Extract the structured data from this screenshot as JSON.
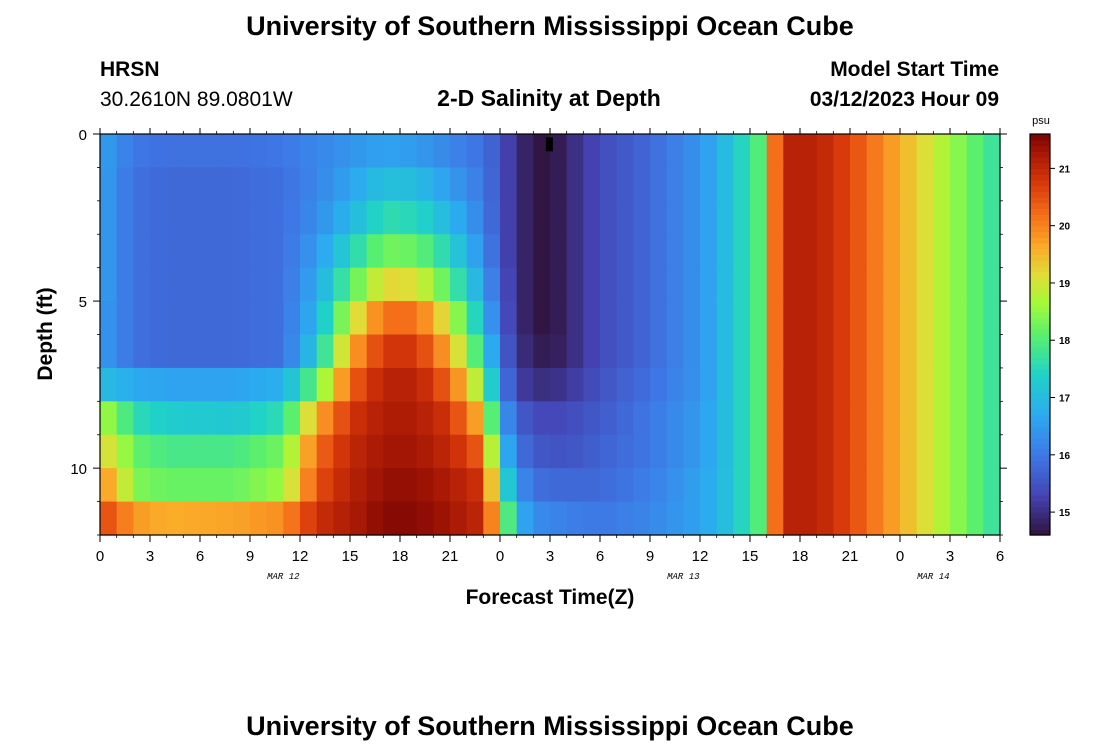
{
  "page": {
    "title": "University of Southern Mississippi Ocean Cube",
    "footer_title": "University of Southern Mississippi Ocean Cube",
    "station": "HRSN",
    "coords": "30.2610N  89.0801W",
    "model_start_label": "Model Start Time",
    "model_start_value": "03/12/2023 Hour 09"
  },
  "chart_data": {
    "type": "heatmap",
    "title": "2-D Salinity at Depth",
    "xlabel": "Forecast Time(Z)",
    "ylabel": "Depth (ft)",
    "x_ticks": [
      "0",
      "3",
      "6",
      "9",
      "12",
      "15",
      "18",
      "21",
      "0",
      "3",
      "6",
      "9",
      "12",
      "15",
      "18",
      "21",
      "0",
      "3",
      "6"
    ],
    "x_range_hours": [
      0,
      54
    ],
    "date_labels": [
      {
        "hour": 11,
        "text": "MAR 12"
      },
      {
        "hour": 35,
        "text": "MAR 13"
      },
      {
        "hour": 50,
        "text": "MAR 14"
      }
    ],
    "y_ticks": [
      0,
      5,
      10
    ],
    "y_range_ft": [
      0,
      12
    ],
    "colorbar": {
      "unit": "psu",
      "range": [
        14.6,
        21.6
      ],
      "ticks": [
        15,
        16,
        17,
        18,
        19,
        20,
        21
      ]
    },
    "depth_levels_ft": [
      0.5,
      1.5,
      2.5,
      3.5,
      4.5,
      5.5,
      6.5,
      7.5,
      8.5,
      9.5,
      10.5,
      11.5
    ],
    "time_knots_hours": [
      0,
      1,
      2,
      4,
      8,
      11,
      13,
      15,
      17,
      19,
      21,
      23,
      24,
      25,
      26,
      27,
      28,
      30,
      33,
      36,
      38,
      39.5,
      40.5,
      41.5,
      43,
      45,
      48,
      51,
      54
    ],
    "salinity_psu": [
      [
        16.6,
        16.3,
        16.0,
        15.9,
        15.9,
        16.0,
        16.2,
        16.4,
        16.6,
        16.5,
        16.2,
        15.9,
        15.5,
        15.0,
        14.7,
        14.6,
        14.9,
        15.4,
        15.8,
        16.4,
        17.2,
        18.0,
        20.2,
        21.1,
        21.1,
        20.6,
        19.6,
        18.6,
        17.6
      ],
      [
        16.6,
        16.2,
        15.9,
        15.8,
        15.8,
        15.9,
        16.2,
        16.6,
        17.1,
        17.0,
        16.5,
        16.0,
        15.5,
        15.0,
        14.7,
        14.6,
        14.9,
        15.4,
        15.8,
        16.4,
        17.2,
        18.0,
        20.2,
        21.1,
        21.1,
        20.6,
        19.6,
        18.6,
        17.6
      ],
      [
        16.6,
        16.2,
        15.9,
        15.8,
        15.8,
        15.9,
        16.3,
        16.9,
        17.6,
        17.5,
        16.9,
        16.1,
        15.5,
        15.0,
        14.7,
        14.6,
        14.9,
        15.4,
        15.8,
        16.4,
        17.2,
        18.0,
        20.2,
        21.1,
        21.1,
        20.6,
        19.6,
        18.6,
        17.6
      ],
      [
        16.6,
        16.2,
        15.9,
        15.8,
        15.8,
        15.9,
        16.5,
        17.4,
        18.3,
        18.2,
        17.4,
        16.3,
        15.5,
        15.0,
        14.7,
        14.6,
        14.9,
        15.4,
        15.8,
        16.4,
        17.2,
        18.0,
        20.2,
        21.1,
        21.1,
        20.6,
        19.6,
        18.6,
        17.6
      ],
      [
        16.6,
        16.2,
        15.9,
        15.8,
        15.8,
        15.9,
        16.7,
        18.0,
        19.2,
        19.1,
        18.0,
        16.6,
        15.6,
        15.0,
        14.7,
        14.6,
        14.9,
        15.4,
        15.8,
        16.4,
        17.2,
        18.0,
        20.2,
        21.1,
        21.1,
        20.6,
        19.6,
        18.6,
        17.6
      ],
      [
        16.5,
        16.2,
        15.9,
        15.8,
        15.8,
        15.9,
        16.9,
        18.8,
        20.2,
        20.2,
        18.9,
        17.0,
        15.7,
        15.0,
        14.7,
        14.6,
        14.9,
        15.4,
        15.8,
        16.4,
        17.2,
        18.0,
        20.2,
        21.1,
        21.1,
        20.6,
        19.6,
        18.6,
        17.6
      ],
      [
        16.5,
        16.2,
        15.9,
        15.8,
        15.8,
        15.9,
        17.2,
        19.6,
        20.8,
        20.8,
        19.6,
        17.5,
        15.9,
        15.1,
        14.8,
        14.7,
        14.9,
        15.4,
        15.8,
        16.4,
        17.2,
        18.0,
        20.2,
        21.1,
        21.1,
        20.6,
        19.6,
        18.6,
        17.6
      ],
      [
        17.0,
        16.9,
        16.7,
        16.6,
        16.6,
        16.8,
        18.2,
        20.3,
        21.1,
        21.1,
        20.3,
        18.4,
        16.2,
        15.3,
        15.0,
        15.0,
        15.1,
        15.5,
        15.9,
        16.4,
        17.2,
        18.0,
        20.2,
        21.1,
        21.1,
        20.6,
        19.6,
        18.6,
        17.6
      ],
      [
        18.7,
        18.3,
        17.6,
        17.3,
        17.2,
        17.6,
        19.6,
        20.8,
        21.2,
        21.2,
        20.8,
        19.4,
        16.7,
        15.7,
        15.4,
        15.3,
        15.4,
        15.6,
        16.0,
        16.5,
        17.2,
        18.0,
        20.2,
        21.1,
        21.1,
        20.6,
        19.6,
        18.6,
        17.6
      ],
      [
        19.2,
        18.9,
        18.2,
        17.9,
        17.9,
        18.3,
        20.2,
        21.0,
        21.3,
        21.3,
        21.0,
        20.3,
        17.3,
        16.0,
        15.6,
        15.5,
        15.5,
        15.7,
        16.0,
        16.5,
        17.2,
        18.0,
        20.2,
        21.1,
        21.1,
        20.6,
        19.6,
        18.6,
        17.6
      ],
      [
        19.9,
        19.4,
        18.4,
        18.2,
        18.2,
        18.6,
        20.5,
        21.1,
        21.4,
        21.4,
        21.2,
        20.8,
        18.0,
        16.4,
        15.9,
        15.8,
        15.8,
        15.8,
        16.1,
        16.6,
        17.2,
        18.0,
        20.2,
        21.1,
        21.1,
        20.6,
        19.6,
        18.6,
        17.6
      ],
      [
        20.6,
        20.3,
        19.8,
        19.6,
        19.7,
        19.9,
        20.9,
        21.2,
        21.5,
        21.5,
        21.3,
        21.0,
        19.0,
        16.9,
        16.3,
        16.2,
        16.1,
        16.0,
        16.2,
        16.6,
        17.2,
        18.0,
        20.2,
        21.1,
        21.1,
        20.6,
        19.6,
        18.6,
        17.6
      ]
    ]
  }
}
